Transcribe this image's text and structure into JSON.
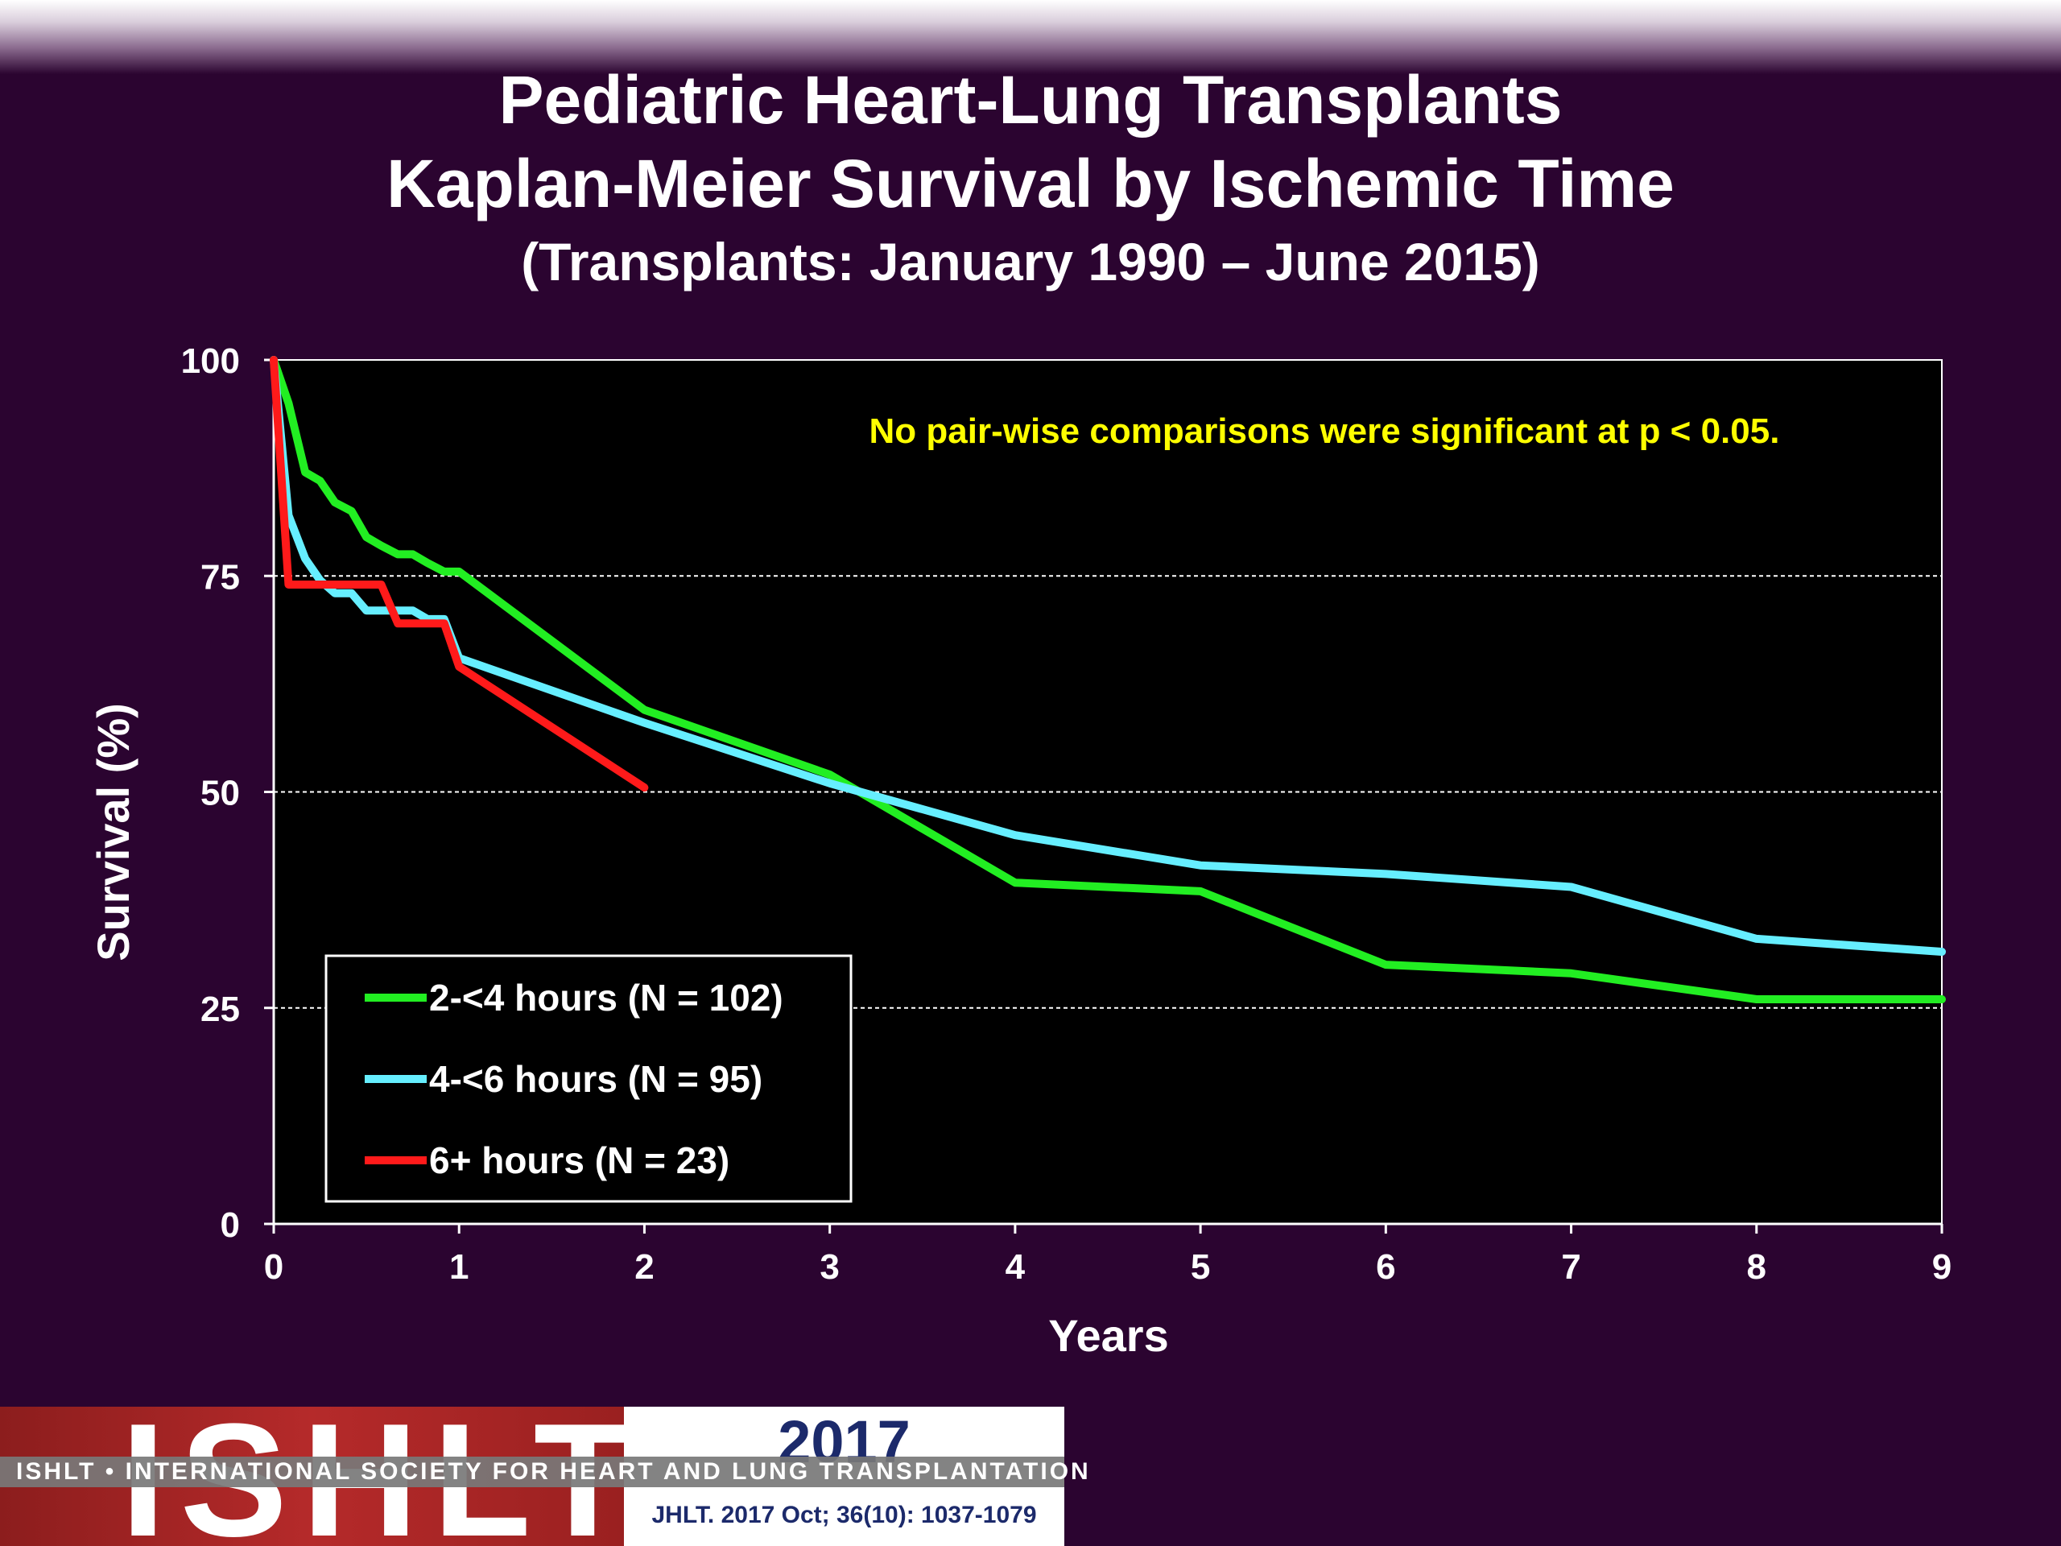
{
  "title": {
    "line1": "Pediatric Heart-Lung Transplants",
    "line2": "Kaplan-Meier Survival by Ischemic Time",
    "line3": "(Transplants: January 1990 – June 2015)"
  },
  "annotation": "No pair-wise comparisons were significant at p < 0.05.",
  "colors": {
    "background": "#2b0430",
    "plot_background": "#000000",
    "annotation": "#ffff00",
    "series": [
      "#22ee22",
      "#66eeff",
      "#ff1a1a"
    ]
  },
  "chart_data": {
    "type": "line",
    "xlabel": "Years",
    "ylabel": "Survival (%)",
    "xlim": [
      0,
      9
    ],
    "ylim": [
      0,
      100
    ],
    "xticks": [
      "0",
      "1",
      "2",
      "3",
      "4",
      "5",
      "6",
      "7",
      "8",
      "9"
    ],
    "yticks": [
      "0",
      "25",
      "50",
      "75",
      "100"
    ],
    "grid": "horizontal dashed at 25, 50, 75",
    "legend_position": "bottom-left",
    "series": [
      {
        "name": "2-<4 hours (N = 102)",
        "color": "#22ee22",
        "points": [
          [
            0,
            100
          ],
          [
            0.08,
            95
          ],
          [
            0.17,
            87
          ],
          [
            0.25,
            86
          ],
          [
            0.33,
            83.5
          ],
          [
            0.42,
            82.5
          ],
          [
            0.5,
            79.5
          ],
          [
            0.58,
            78.5
          ],
          [
            0.67,
            77.5
          ],
          [
            0.75,
            77.5
          ],
          [
            0.83,
            76.5
          ],
          [
            0.92,
            75.5
          ],
          [
            1,
            75.5
          ],
          [
            2,
            59.5
          ],
          [
            3,
            52
          ],
          [
            4,
            39.5
          ],
          [
            5,
            38.5
          ],
          [
            6,
            30
          ],
          [
            7,
            29
          ],
          [
            8,
            26
          ],
          [
            9,
            26
          ]
        ]
      },
      {
        "name": "4-<6 hours (N = 95)",
        "color": "#66eeff",
        "points": [
          [
            0,
            100
          ],
          [
            0.08,
            82
          ],
          [
            0.17,
            77
          ],
          [
            0.25,
            74.5
          ],
          [
            0.33,
            73
          ],
          [
            0.42,
            73
          ],
          [
            0.5,
            71
          ],
          [
            0.58,
            71
          ],
          [
            0.67,
            71
          ],
          [
            0.75,
            71
          ],
          [
            0.83,
            70
          ],
          [
            0.92,
            70
          ],
          [
            1,
            65.5
          ],
          [
            2,
            58
          ],
          [
            3,
            51
          ],
          [
            4,
            45
          ],
          [
            5,
            41.5
          ],
          [
            6,
            40.5
          ],
          [
            7,
            39
          ],
          [
            8,
            33
          ],
          [
            9,
            31.5
          ]
        ]
      },
      {
        "name": "6+ hours (N = 23)",
        "color": "#ff1a1a",
        "points": [
          [
            0,
            100
          ],
          [
            0.08,
            74
          ],
          [
            0.17,
            74
          ],
          [
            0.25,
            74
          ],
          [
            0.33,
            74
          ],
          [
            0.42,
            74
          ],
          [
            0.5,
            74
          ],
          [
            0.58,
            74
          ],
          [
            0.67,
            69.5
          ],
          [
            0.75,
            69.5
          ],
          [
            0.83,
            69.5
          ],
          [
            0.92,
            69.5
          ],
          [
            1,
            64.5
          ],
          [
            2,
            50.5
          ]
        ]
      }
    ]
  },
  "footer": {
    "logo_letters": "ISHLT",
    "logo_year": "2017",
    "logo_banner": "ISHLT • INTERNATIONAL SOCIETY FOR HEART AND LUNG TRANSPLANTATION",
    "citation": "JHLT. 2017 Oct; 36(10): 1037-1079"
  }
}
